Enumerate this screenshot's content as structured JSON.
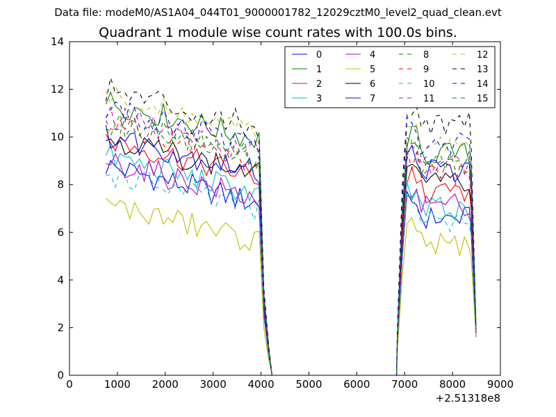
{
  "figure": {
    "suptitle": "Data file: modeM0/AS1A04_044T01_9000001782_12029cztM0_level2_quad_clean.evt"
  },
  "chart_data": {
    "type": "line",
    "title": "Quadrant 1 module wise count rates with 100.0s bins.",
    "xlabel": "",
    "ylabel": "",
    "xlim": [
      0,
      9000
    ],
    "ylim": [
      0,
      14
    ],
    "x_ticks": [
      0,
      1000,
      2000,
      3000,
      4000,
      5000,
      6000,
      7000,
      8000,
      9000
    ],
    "y_ticks": [
      0,
      2,
      4,
      6,
      8,
      10,
      12,
      14
    ],
    "x_offset_label": "+2.51318e8",
    "legend_position": "top-right",
    "legend_columns": 4,
    "grid": false,
    "segments": [
      {
        "x_start": 760,
        "x_end": 3960,
        "step": 100
      },
      {
        "x_start": 4060,
        "x_end": 4160,
        "step": 100
      },
      {
        "x_start": 4230,
        "x_end": 6830,
        "step": 100
      },
      {
        "x_start": 6850,
        "x_end": 6950,
        "step": 100
      },
      {
        "x_start": 7050,
        "x_end": 8350,
        "step": 100
      },
      {
        "x_start": 8390,
        "x_end": 8490,
        "step": 100
      }
    ],
    "series": [
      {
        "name": "0",
        "color": "#0000ff",
        "dash": "solid",
        "base1": 7.2,
        "base2": 6.6,
        "end": 1.6
      },
      {
        "name": "1",
        "color": "#008000",
        "dash": "solid",
        "base1": 9.9,
        "base2": 9.3,
        "end": 1.9
      },
      {
        "name": "2",
        "color": "#ff0000",
        "dash": "solid",
        "base1": 8.3,
        "base2": 7.7,
        "end": 1.8
      },
      {
        "name": "3",
        "color": "#00bfbf",
        "dash": "solid",
        "base1": 7.6,
        "base2": 7.0,
        "end": 1.7
      },
      {
        "name": "4",
        "color": "#bf00bf",
        "dash": "solid",
        "base1": 7.4,
        "base2": 7.2,
        "end": 1.7
      },
      {
        "name": "5",
        "color": "#bfbf00",
        "dash": "solid",
        "base1": 5.6,
        "base2": 5.5,
        "end": 1.6
      },
      {
        "name": "6",
        "color": "#000000",
        "dash": "solid",
        "base1": 8.4,
        "base2": 8.1,
        "end": 1.8
      },
      {
        "name": "7",
        "color": "#0000ff",
        "dash": "solid",
        "base1": 8.5,
        "base2": 8.6,
        "end": 1.9
      },
      {
        "name": "8",
        "color": "#008000",
        "dash": "dashed",
        "base1": 9.0,
        "base2": 8.7,
        "end": 1.9
      },
      {
        "name": "9",
        "color": "#ff0000",
        "dash": "dashed",
        "base1": 8.9,
        "base2": 8.4,
        "end": 1.8
      },
      {
        "name": "10",
        "color": "#00bfbf",
        "dash": "dashed",
        "base1": 6.9,
        "base2": 6.5,
        "end": 1.6
      },
      {
        "name": "11",
        "color": "#bf00bf",
        "dash": "dashed",
        "base1": 9.3,
        "base2": 8.8,
        "end": 1.9
      },
      {
        "name": "12",
        "color": "#bfbf00",
        "dash": "dashed",
        "base1": 10.1,
        "base2": 9.8,
        "end": 2.0
      },
      {
        "name": "13",
        "color": "#000000",
        "dash": "dashed",
        "base1": 10.4,
        "base2": 10.6,
        "end": 2.1
      },
      {
        "name": "14",
        "color": "#0000ff",
        "dash": "dashed",
        "base1": 9.6,
        "base2": 9.7,
        "end": 2.0
      },
      {
        "name": "15",
        "color": "#008000",
        "dash": "dashed",
        "base1": 9.2,
        "base2": 9.0,
        "end": 1.9
      }
    ]
  }
}
